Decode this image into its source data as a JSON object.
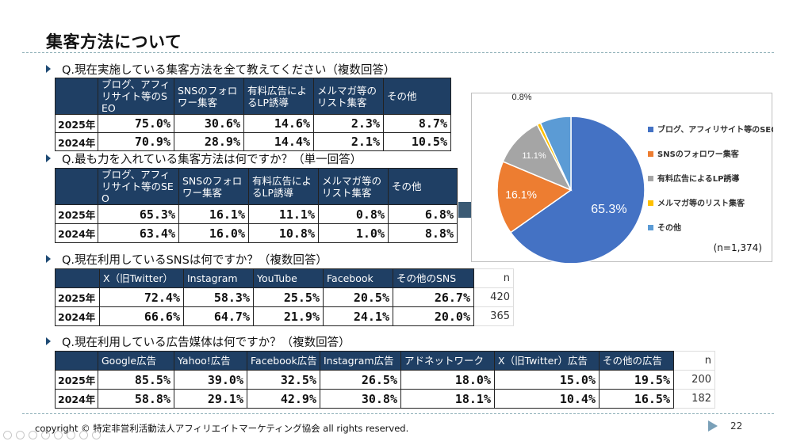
{
  "slide": {
    "title": "集客方法について",
    "copyright": "copyright © 特定非営利活動法人アフィリエイトマーケティング協会 all rights reserved.",
    "page_number": "22"
  },
  "q1": {
    "question": "Q.現在実施している集客方法を全て教えてください（複数回答）",
    "headers": [
      "ブログ、アフィリサイト等のSEO",
      "SNSのフォロワー集客",
      "有料広告によるLP誘導",
      "メルマガ等のリスト集客",
      "その他"
    ],
    "rows": [
      {
        "year": "2025年",
        "values": [
          "75.0%",
          "30.6%",
          "14.6%",
          "2.3%",
          "8.7%"
        ]
      },
      {
        "year": "2024年",
        "values": [
          "70.9%",
          "28.9%",
          "14.4%",
          "2.1%",
          "10.5%"
        ]
      }
    ]
  },
  "q2": {
    "question": "Q.最も力を入れている集客方法は何ですか？（単一回答）",
    "headers": [
      "ブログ、アフィリサイト等のSEO",
      "SNSのフォロワー集客",
      "有料広告によるLP誘導",
      "メルマガ等のリスト集客",
      "その他"
    ],
    "rows": [
      {
        "year": "2025年",
        "values": [
          "65.3%",
          "16.1%",
          "11.1%",
          "0.8%",
          "6.8%"
        ]
      },
      {
        "year": "2024年",
        "values": [
          "63.4%",
          "16.0%",
          "10.8%",
          "1.0%",
          "8.8%"
        ]
      }
    ]
  },
  "q3": {
    "question": "Q.現在利用しているSNSは何ですか？（複数回答）",
    "headers": [
      "X（旧Twitter）",
      "Instagram",
      "YouTube",
      "Facebook",
      "その他のSNS"
    ],
    "n_label": "n",
    "rows": [
      {
        "year": "2025年",
        "values": [
          "72.4%",
          "58.3%",
          "25.5%",
          "20.5%",
          "26.7%"
        ],
        "n": "420"
      },
      {
        "year": "2024年",
        "values": [
          "66.6%",
          "64.7%",
          "21.9%",
          "24.1%",
          "20.0%"
        ],
        "n": "365"
      }
    ]
  },
  "q4": {
    "question": "Q.現在利用している広告媒体は何ですか？（複数回答）",
    "headers": [
      "Google広告",
      "Yahoo!広告",
      "Facebook広告",
      "Instagram広告",
      "アドネットワーク",
      "X（旧Twitter）広告",
      "その他の広告"
    ],
    "n_label": "n",
    "rows": [
      {
        "year": "2025年",
        "values": [
          "85.5%",
          "39.0%",
          "32.5%",
          "26.5%",
          "18.0%",
          "15.0%",
          "19.5%"
        ],
        "n": "200"
      },
      {
        "year": "2024年",
        "values": [
          "58.8%",
          "29.1%",
          "42.9%",
          "30.8%",
          "18.1%",
          "10.4%",
          "16.5%"
        ],
        "n": "182"
      }
    ]
  },
  "chart_data": {
    "type": "pie",
    "categories": [
      "ブログ、アフィリサイト等のSEO",
      "SNSのフォロワー集客",
      "有料広告によるLP誘導",
      "メルマガ等のリスト集客",
      "その他"
    ],
    "values": [
      65.3,
      16.1,
      11.1,
      0.8,
      6.8
    ],
    "data_labels": [
      "65.3%",
      "16.1%",
      "11.1%",
      "0.8%",
      ""
    ],
    "colors": [
      "#4472c4",
      "#ed7d31",
      "#a5a5a5",
      "#ffc000",
      "#5b9bd5"
    ],
    "legend_position": "right",
    "note": "(n=1,374)"
  }
}
